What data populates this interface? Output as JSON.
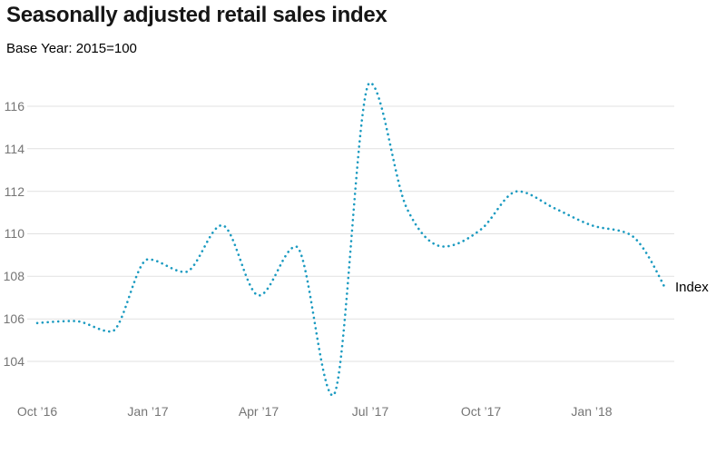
{
  "header": {
    "title": "Seasonally adjusted retail sales index",
    "subtitle": "Base Year: 2015=100"
  },
  "chart_data": {
    "type": "line",
    "title": "Seasonally adjusted retail sales index",
    "subtitle": "Base Year: 2015=100",
    "x": [
      "Oct 2016",
      "Nov 2016",
      "Dec 2016",
      "Jan 2017",
      "Feb 2017",
      "Mar 2017",
      "Apr 2017",
      "May 2017",
      "Jun 2017",
      "Jul 2017",
      "Aug 2017",
      "Sep 2017",
      "Oct 2017",
      "Nov 2017",
      "Dec 2017",
      "Jan 2018",
      "Feb 2018",
      "Mar 2018"
    ],
    "series": [
      {
        "name": "Index",
        "values": [
          105.8,
          105.9,
          105.4,
          108.8,
          108.2,
          110.4,
          107.1,
          109.4,
          102.4,
          117.1,
          111.2,
          109.4,
          110.2,
          112.0,
          111.2,
          110.4,
          110.0,
          107.4
        ]
      }
    ],
    "series_label": "Index",
    "x_tick_labels": [
      "Oct ’16",
      "Jan ’17",
      "Apr ’17",
      "Jul ’17",
      "Oct ’17",
      "Jan ’18"
    ],
    "x_tick_month_indices": [
      0,
      3,
      6,
      9,
      12,
      15
    ],
    "y_ticks": [
      116,
      114,
      112,
      110,
      108,
      106,
      104
    ],
    "ylim": [
      102.4,
      117.1
    ],
    "grid": "horizontal-only",
    "legend_position": "end-of-line",
    "line_style": "dotted",
    "line_color": "#1A9AC0",
    "gridline_color": "#e1e1e1",
    "axis_label_color": "#757575",
    "title_color": "#161616",
    "background_color": "#ffffff"
  }
}
